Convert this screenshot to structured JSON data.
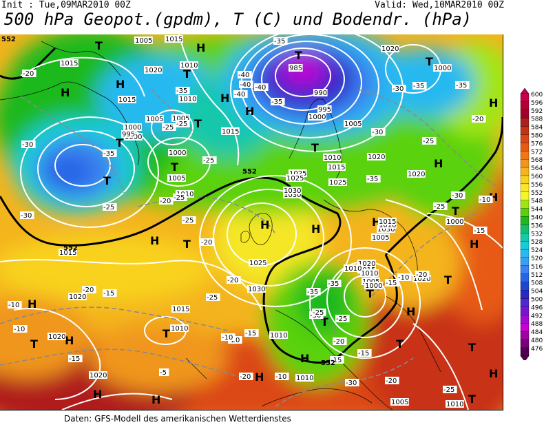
{
  "header": {
    "init": "Init : Tue,09MAR2010 00Z",
    "valid": "Valid: Wed,10MAR2010 00Z",
    "title": "500 hPa Geopot.(gpdm), T (C) und Bodendr. (hPa)"
  },
  "footer": "Daten: GFS-Modell des amerikanischen Wetterdienstes",
  "legend": {
    "values": [
      "600",
      "596",
      "592",
      "588",
      "584",
      "580",
      "576",
      "572",
      "568",
      "564",
      "560",
      "556",
      "552",
      "548",
      "544",
      "540",
      "536",
      "532",
      "528",
      "524",
      "520",
      "516",
      "512",
      "508",
      "504",
      "500",
      "496",
      "492",
      "488",
      "484",
      "480",
      "476"
    ],
    "colors": [
      "#c8004b",
      "#b40033",
      "#a0002a",
      "#b01e1e",
      "#c83214",
      "#dc4614",
      "#e65a14",
      "#ee7814",
      "#f0961e",
      "#f4b41e",
      "#f8d21e",
      "#fae628",
      "#f5f528",
      "#a0e614",
      "#5ad20a",
      "#1eb91e",
      "#14be6e",
      "#14c8aa",
      "#14cddc",
      "#28b9f0",
      "#3ca0f0",
      "#3c82f0",
      "#2864e6",
      "#1e46d2",
      "#2828c8",
      "#5028d2",
      "#7814d2",
      "#a00ad2",
      "#c800d2",
      "#a000a0",
      "#780078",
      "#500050"
    ]
  },
  "map": {
    "highs": [
      "H",
      "H",
      "H",
      "H",
      "H",
      "H",
      "H",
      "H",
      "H",
      "H",
      "H",
      "H",
      "H",
      "H",
      "H",
      "H",
      "H",
      "H",
      "H",
      "H",
      "H"
    ],
    "lows": [
      "T",
      "T",
      "T",
      "T",
      "T",
      "T",
      "T",
      "T",
      "T",
      "T",
      "T",
      "T",
      "T",
      "T",
      "T",
      "T",
      "T",
      "T",
      "T"
    ],
    "isobar_labels": [
      "1005",
      "1015",
      "1020",
      "1010",
      "1000",
      "985",
      "990",
      "995",
      "1000",
      "1005",
      "1000",
      "1005",
      "1015",
      "1010",
      "1005",
      "1000",
      "995",
      "1000",
      "1005",
      "1010",
      "1015",
      "1015",
      "1020",
      "1025",
      "1030",
      "1020",
      "1015",
      "1010",
      "1025",
      "1020",
      "1030",
      "1005",
      "1010",
      "1015",
      "1025",
      "1030",
      "1020",
      "1015",
      "1010",
      "1005",
      "1000",
      "1020",
      "1015",
      "1010",
      "1020",
      "1020",
      "1010",
      "1005",
      "1010",
      "1000",
      "1010",
      "1015",
      "1020",
      "1025",
      "1030",
      "1010"
    ],
    "temp_labels": [
      "-20",
      "-35",
      "-35",
      "-40",
      "-40",
      "-40",
      "-40",
      "-35",
      "-30",
      "-35",
      "-35",
      "-25",
      "-25",
      "-30",
      "-35",
      "-25",
      "-25",
      "-20",
      "-30",
      "-25",
      "-35",
      "-30",
      "-25",
      "-20",
      "-20",
      "-25",
      "-25",
      "-20",
      "-25",
      "-30",
      "-35",
      "-35",
      "-30",
      "-25",
      "-20",
      "-15",
      "-15",
      "-10",
      "-20",
      "-15",
      "-10",
      "-15",
      "-20",
      "-10",
      "-10",
      "-15",
      "-20",
      "-10",
      "-15",
      "-5",
      "-20",
      "-15",
      "-10",
      "-20",
      "-25",
      "-30",
      "-25"
    ],
    "height_labels": [
      "552",
      "552",
      "552",
      "552"
    ]
  }
}
